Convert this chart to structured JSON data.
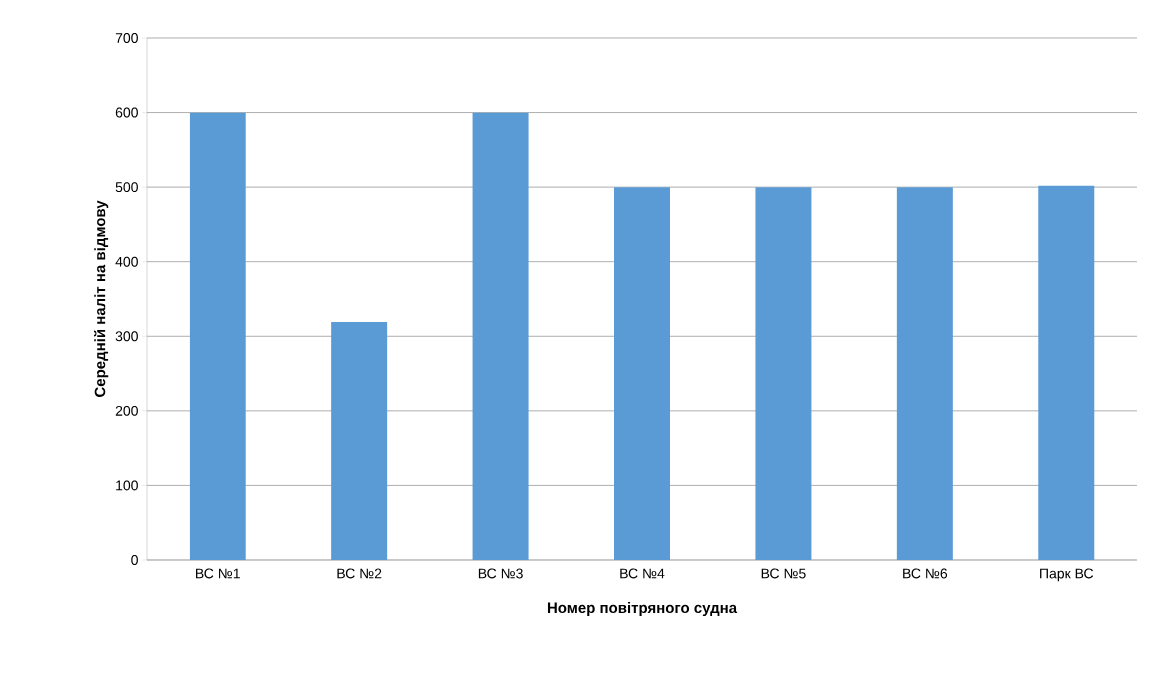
{
  "chart_data": {
    "type": "bar",
    "xlabel": "Номер повітряного судна",
    "ylabel": "Середній наліт на відмову",
    "categories": [
      "ВС №1",
      "ВС №2",
      "ВС №3",
      "ВС №4",
      "ВС №5",
      "ВС №6",
      "Парк ВС"
    ],
    "values": [
      600,
      319,
      600,
      500,
      500,
      500,
      502
    ],
    "color": "#5b9bd5",
    "ylim": [
      0,
      700
    ],
    "yticks": [
      0,
      100,
      200,
      300,
      400,
      500,
      600,
      700
    ],
    "grid": "y"
  }
}
